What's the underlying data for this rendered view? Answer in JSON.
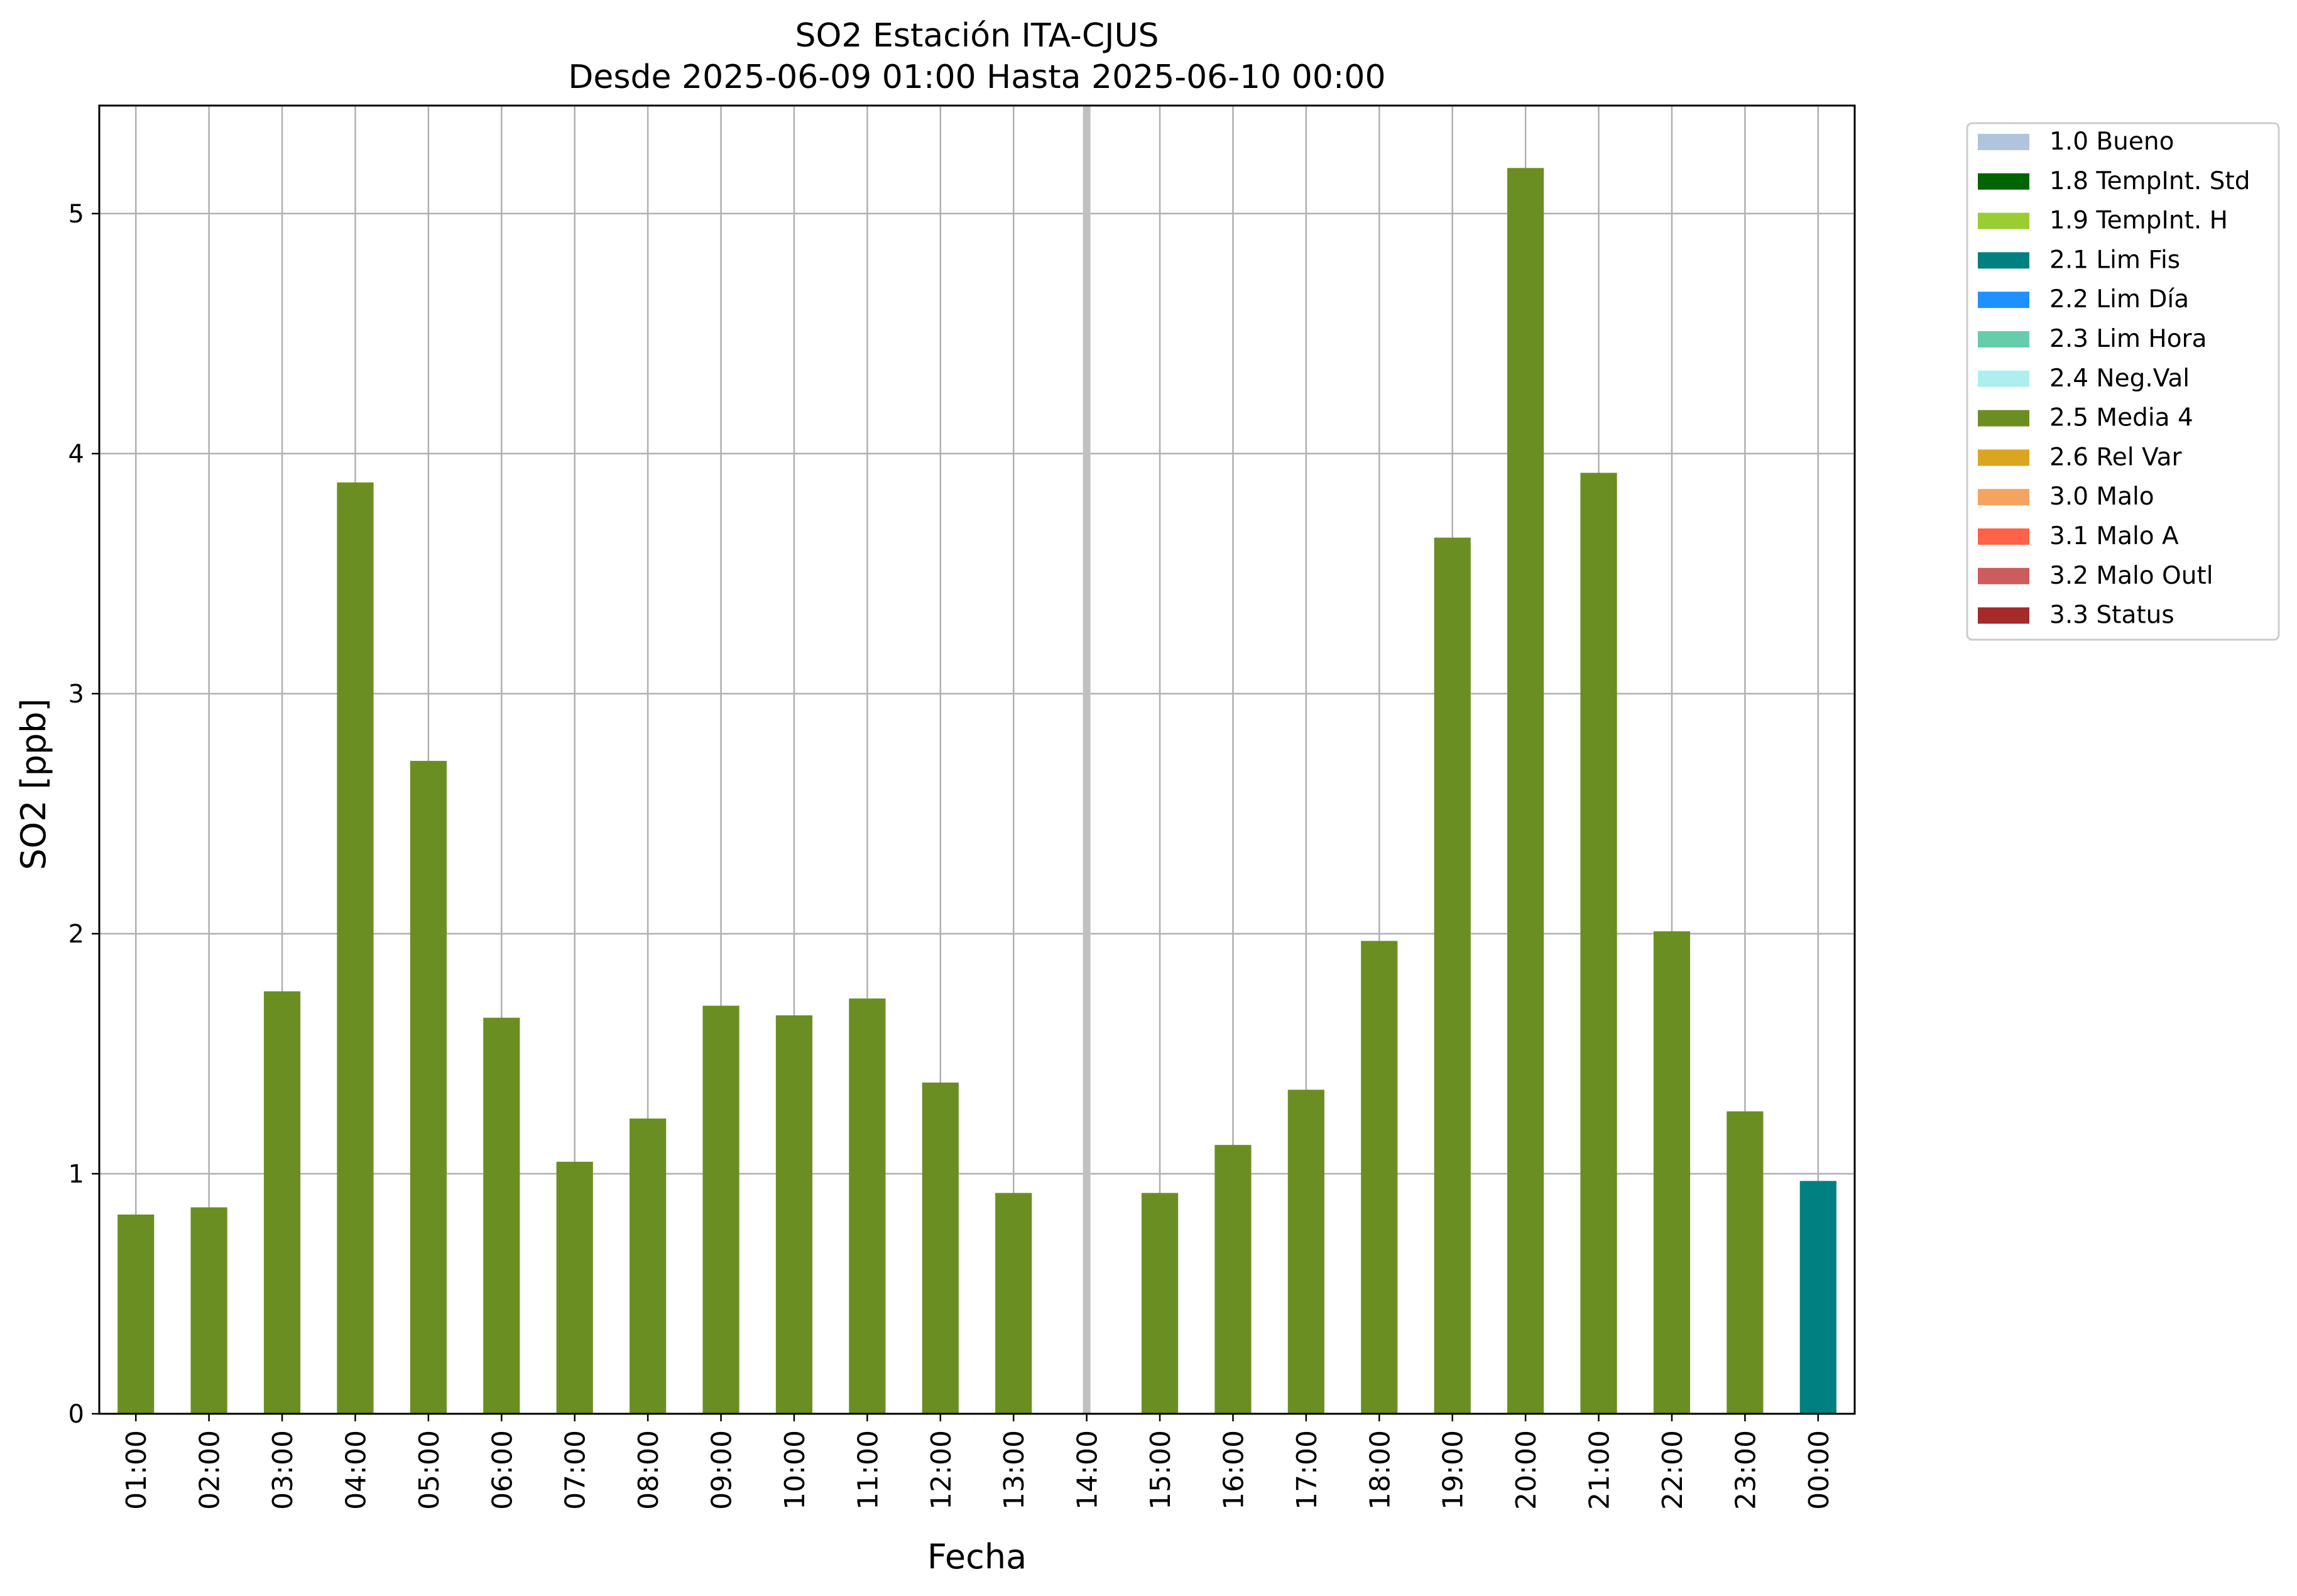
{
  "chart_data": {
    "type": "bar",
    "title": "SO2 Estación ITA-CJUS",
    "subtitle": "Desde 2025-06-09 01:00 Hasta 2025-06-10 00:00",
    "xlabel": "Fecha",
    "ylabel": "SO2 [ppb]",
    "ylim": [
      0,
      5.45
    ],
    "yticks": [
      0,
      1,
      2,
      3,
      4,
      5
    ],
    "grid": true,
    "legend_placement": "outside-top-right",
    "categories": [
      "01:00",
      "02:00",
      "03:00",
      "04:00",
      "05:00",
      "06:00",
      "07:00",
      "08:00",
      "09:00",
      "10:00",
      "11:00",
      "12:00",
      "13:00",
      "14:00",
      "15:00",
      "16:00",
      "17:00",
      "18:00",
      "19:00",
      "20:00",
      "21:00",
      "22:00",
      "23:00",
      "00:00"
    ],
    "values": [
      0.83,
      0.86,
      1.76,
      3.88,
      2.72,
      1.65,
      1.05,
      1.23,
      1.7,
      1.66,
      1.73,
      1.38,
      0.92,
      null,
      0.92,
      1.12,
      1.35,
      1.97,
      3.65,
      5.19,
      3.92,
      2.01,
      1.26,
      0.97
    ],
    "flags": [
      "2.5 Media 4",
      "2.5 Media 4",
      "2.5 Media 4",
      "2.5 Media 4",
      "2.5 Media 4",
      "2.5 Media 4",
      "2.5 Media 4",
      "2.5 Media 4",
      "2.5 Media 4",
      "2.5 Media 4",
      "2.5 Media 4",
      "2.5 Media 4",
      "2.5 Media 4",
      null,
      "2.5 Media 4",
      "2.5 Media 4",
      "2.5 Media 4",
      "2.5 Media 4",
      "2.5 Media 4",
      "2.5 Media 4",
      "2.5 Media 4",
      "2.5 Media 4",
      "2.5 Media 4",
      "2.1 Lim Fis"
    ],
    "missing_marker_category": "14:00",
    "missing_marker_color": "#c0c0c0",
    "legend": [
      {
        "label": "1.0 Bueno",
        "color": "#b0c4de"
      },
      {
        "label": "1.8 TempInt. Std",
        "color": "#006400"
      },
      {
        "label": "1.9 TempInt. H",
        "color": "#9acd32"
      },
      {
        "label": "2.1 Lim Fis",
        "color": "#008080"
      },
      {
        "label": "2.2 Lim Día",
        "color": "#1e90ff"
      },
      {
        "label": "2.3 Lim Hora",
        "color": "#66cdaa"
      },
      {
        "label": "2.4 Neg.Val",
        "color": "#afeeee"
      },
      {
        "label": "2.5 Media 4",
        "color": "#6b8e23"
      },
      {
        "label": "2.6 Rel Var",
        "color": "#daa520"
      },
      {
        "label": "3.0 Malo",
        "color": "#f4a460"
      },
      {
        "label": "3.1 Malo A",
        "color": "#ff6347"
      },
      {
        "label": "3.2 Malo Outl",
        "color": "#cd5c5c"
      },
      {
        "label": "3.3 Status",
        "color": "#a52a2a"
      }
    ]
  }
}
